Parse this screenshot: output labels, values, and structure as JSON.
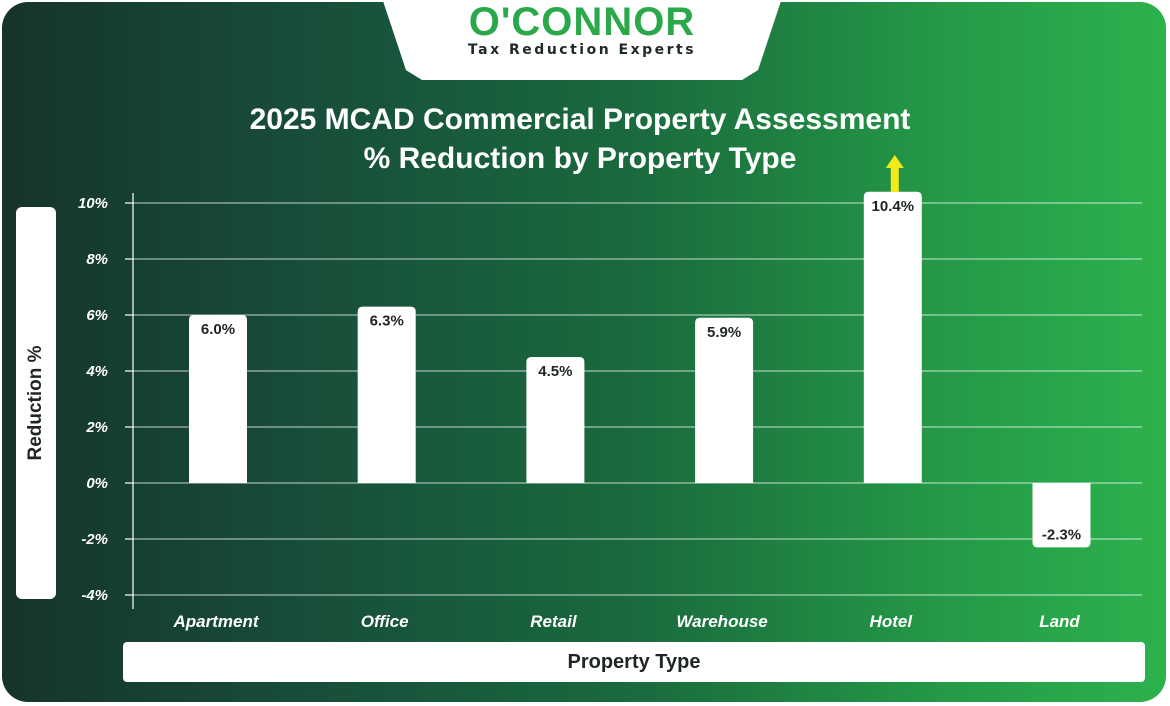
{
  "brand": {
    "name": "O'CONNOR",
    "tagline": "Tax Reduction Experts",
    "color": "#2aa84a"
  },
  "chart_data": {
    "type": "bar",
    "title": "2025 MCAD Commercial Property Assessment",
    "subtitle": "% Reduction by Property Type",
    "xlabel": "Property Type",
    "ylabel": "Reduction %",
    "categories": [
      "Apartment",
      "Office",
      "Retail",
      "Warehouse",
      "Hotel",
      "Land"
    ],
    "values": [
      6.0,
      6.3,
      4.5,
      5.9,
      10.4,
      -2.3
    ],
    "data_labels": [
      "6.0%",
      "6.3%",
      "4.5%",
      "5.9%",
      "10.4%",
      "-2.3%"
    ],
    "ylim": [
      -4,
      10
    ],
    "yticks": [
      10,
      8,
      6,
      4,
      2,
      0,
      -2,
      -4
    ],
    "ytick_labels": [
      "10%",
      "8%",
      "6%",
      "4%",
      "2%",
      "0%",
      "-2%",
      "-4%"
    ],
    "grid": true,
    "bar_color": "#ffffff",
    "arrow_color": "#f2ea1a",
    "annotation": "up-arrow above Hotel bar"
  }
}
